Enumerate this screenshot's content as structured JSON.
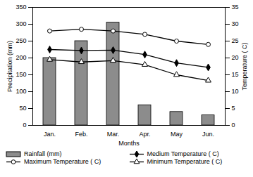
{
  "chart_data": {
    "type": "bar",
    "categories": [
      "Jan.",
      "Feb.",
      "Mar.",
      "Apr.",
      "May",
      "Jun."
    ],
    "x_label": "Months",
    "y_label": "Precipitation (mm)",
    "y2_label": "Temperature ( C)",
    "ylim": [
      0,
      350
    ],
    "yticks": [
      0,
      50,
      100,
      150,
      200,
      250,
      300,
      350
    ],
    "y2lim": [
      0,
      35
    ],
    "y2ticks": [
      0,
      5,
      10,
      15,
      20,
      25,
      30,
      35
    ],
    "grid": false,
    "legend": "bottom",
    "series": [
      {
        "name": "Rainfall (mm)",
        "type": "bar",
        "axis": "y",
        "color": "#8c8c8c",
        "values": [
          200,
          250,
          305,
          60,
          40,
          30
        ]
      },
      {
        "name": "Medium Temperature ( C)",
        "type": "line",
        "axis": "y2",
        "color": "#000000",
        "marker": "diamond",
        "values": [
          22.5,
          22.2,
          22.3,
          21,
          18.5,
          17.2
        ]
      },
      {
        "name": "Maximum Temperature ( C)",
        "type": "line",
        "axis": "y2",
        "color": "#000000",
        "marker": "circle",
        "values": [
          28,
          28.5,
          28,
          27,
          25,
          24
        ]
      },
      {
        "name": "Minimum Temperature ( C)",
        "type": "line",
        "axis": "y2",
        "color": "#000000",
        "marker": "triangle",
        "values": [
          19.5,
          18.8,
          19.2,
          18,
          15,
          13.3
        ]
      }
    ]
  }
}
